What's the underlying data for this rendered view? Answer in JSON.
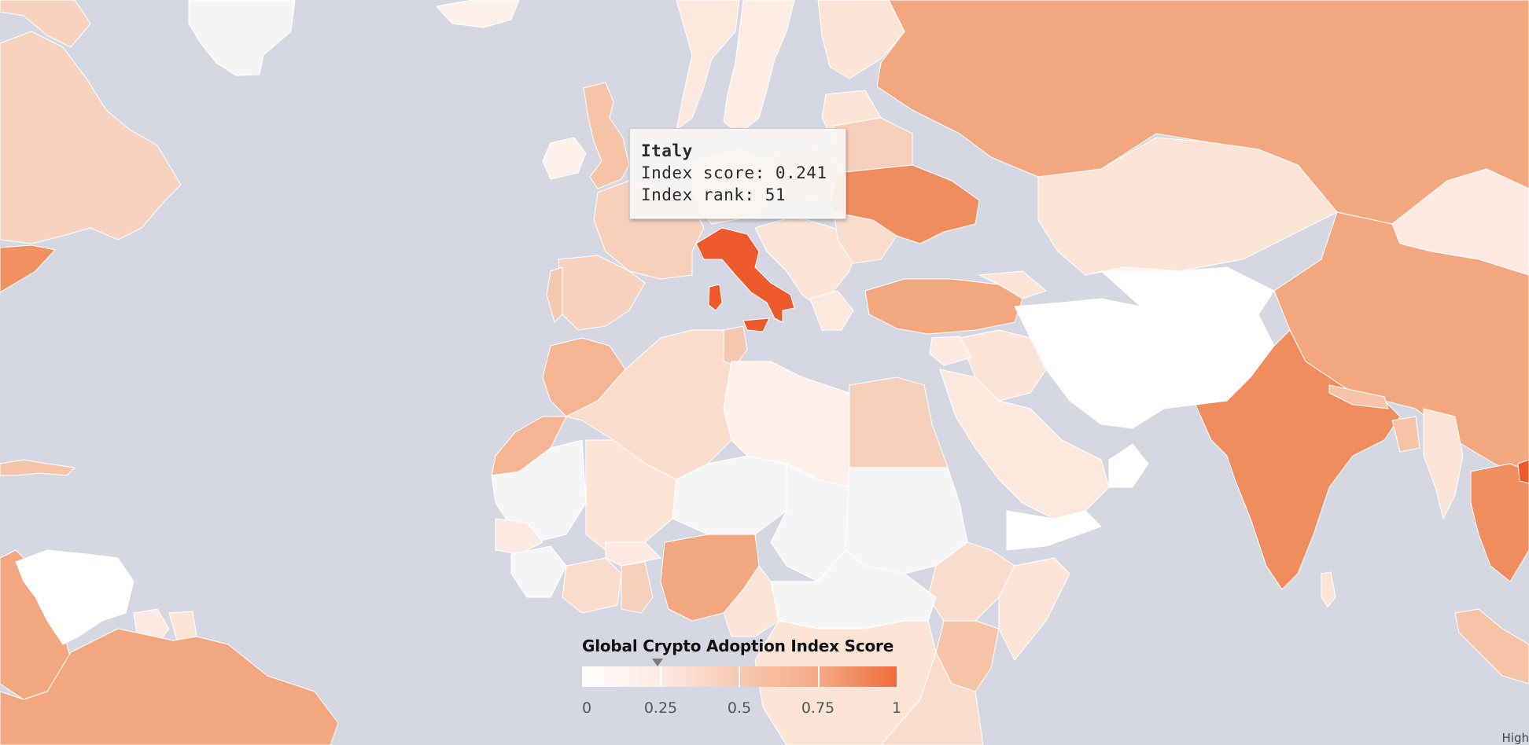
{
  "tooltip": {
    "country": "Italy",
    "score_line": "Index score: 0.241",
    "rank_line": "Index rank: 51"
  },
  "legend": {
    "title": "Global Crypto Adoption Index Score",
    "ticks": [
      "0",
      "0.25",
      "0.5",
      "0.75",
      "1"
    ],
    "domain": [
      0,
      1
    ],
    "marker_value": 0.241,
    "colors": [
      "#fde9e1",
      "#f8c9b3",
      "#f4a985",
      "#f06c3c"
    ]
  },
  "corner_label": "High",
  "colors": {
    "ocean": "#d5d8e2",
    "no_data": "#f5f5f5",
    "very_low": "#ffffff",
    "low": "#fbe3d6",
    "medium_low": "#f7d3bf",
    "medium": "#f3a77f",
    "medium_high": "#ef8d5e",
    "high": "#ec5a2c"
  }
}
